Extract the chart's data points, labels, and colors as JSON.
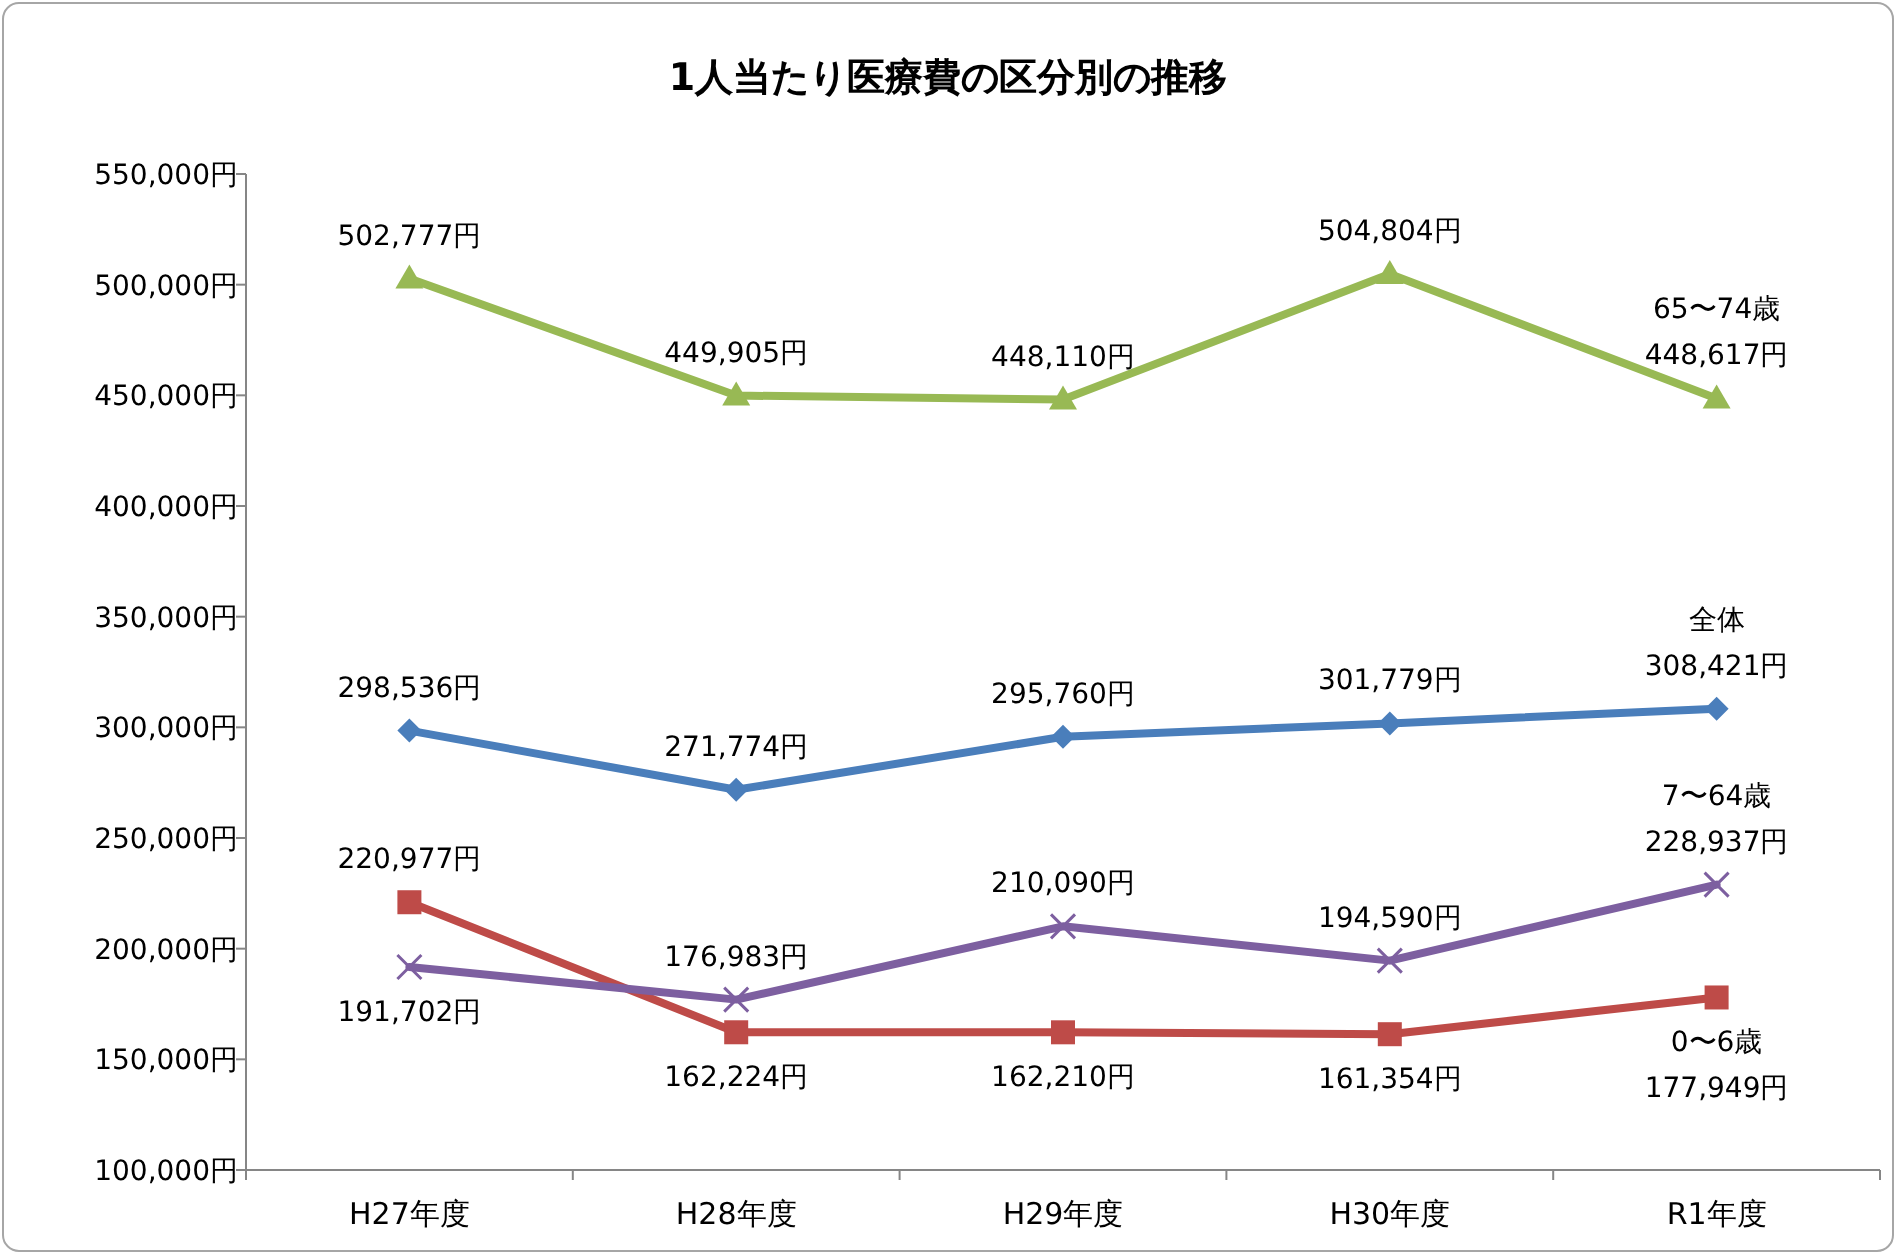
{
  "chart_data": {
    "type": "line",
    "title": "1人当たり医療費の区分別の推移",
    "categories": [
      "H27年度",
      "H28年度",
      "H29年度",
      "H30年度",
      "R1年度"
    ],
    "ylim": [
      100000,
      550000
    ],
    "yticks": [
      {
        "value": 100000,
        "label": "100,000円"
      },
      {
        "value": 150000,
        "label": "150,000円"
      },
      {
        "value": 200000,
        "label": "200,000円"
      },
      {
        "value": 250000,
        "label": "250,000円"
      },
      {
        "value": 300000,
        "label": "300,000円"
      },
      {
        "value": 350000,
        "label": "350,000円"
      },
      {
        "value": 400000,
        "label": "400,000円"
      },
      {
        "value": 450000,
        "label": "450,000円"
      },
      {
        "value": 500000,
        "label": "500,000円"
      },
      {
        "value": 550000,
        "label": "550,000円"
      }
    ],
    "grid": false,
    "series": [
      {
        "name": "全体",
        "color": "#4a7ebb",
        "marker": "diamond",
        "values": [
          298536,
          271774,
          295760,
          301779,
          308421
        ],
        "value_labels": [
          "298,536円",
          "271,774円",
          "295,760円",
          "301,779円",
          "308,421円"
        ]
      },
      {
        "name": "0〜6歳",
        "color": "#be4b48",
        "marker": "square",
        "values": [
          220977,
          162224,
          162210,
          161354,
          177949
        ],
        "value_labels": [
          "220,977円",
          "162,224円",
          "162,210円",
          "161,354円",
          "177,949円"
        ]
      },
      {
        "name": "7〜64歳",
        "color": "#7d5fa0",
        "marker": "cross",
        "values": [
          191702,
          176983,
          210090,
          194590,
          228937
        ],
        "value_labels": [
          "191,702円",
          "176,983円",
          "210,090円",
          "194,590円",
          "228,937円"
        ]
      },
      {
        "name": "65〜74歳",
        "color": "#98b954",
        "marker": "triangle",
        "values": [
          502777,
          449905,
          448110,
          504804,
          448617
        ],
        "value_labels": [
          "502,777円",
          "449,905円",
          "448,110円",
          "504,804円",
          "448,617円"
        ]
      }
    ]
  }
}
